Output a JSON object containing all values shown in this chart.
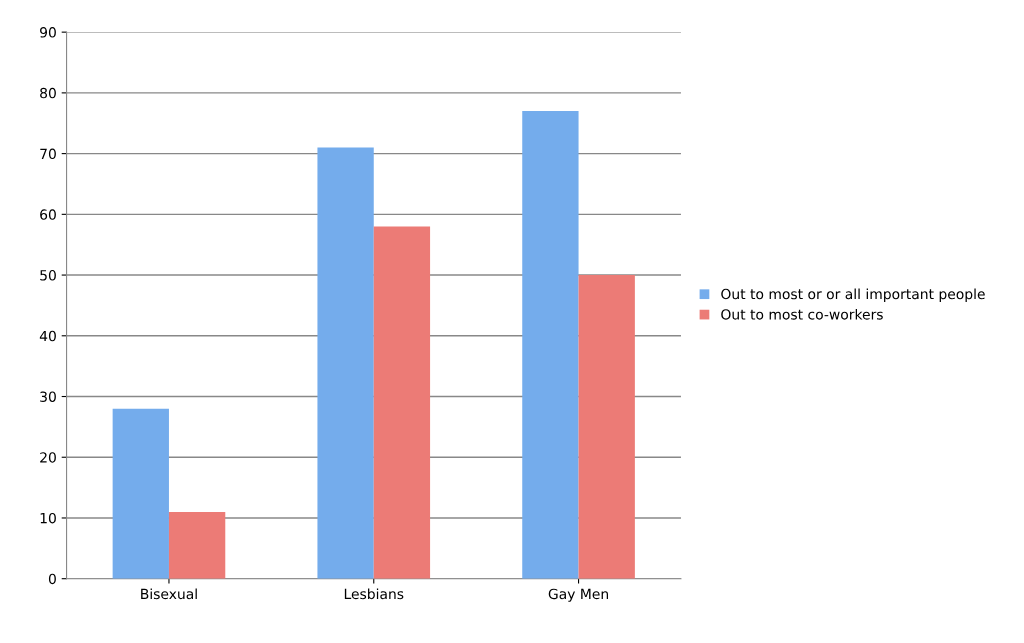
{
  "chart_data": {
    "type": "bar",
    "categories": [
      "Bisexual",
      "Lesbians",
      "Gay Men"
    ],
    "series": [
      {
        "name": "Out to most or or all important people",
        "color": "#74acec",
        "values": [
          28,
          71,
          77
        ]
      },
      {
        "name": "Out to most co-workers",
        "color": "#ec7b76",
        "values": [
          11,
          58,
          50
        ]
      }
    ],
    "ylim": [
      0,
      90
    ],
    "yticks": [
      0,
      10,
      20,
      30,
      40,
      50,
      60,
      70,
      80,
      90
    ],
    "grid": "y",
    "legend": "right"
  }
}
